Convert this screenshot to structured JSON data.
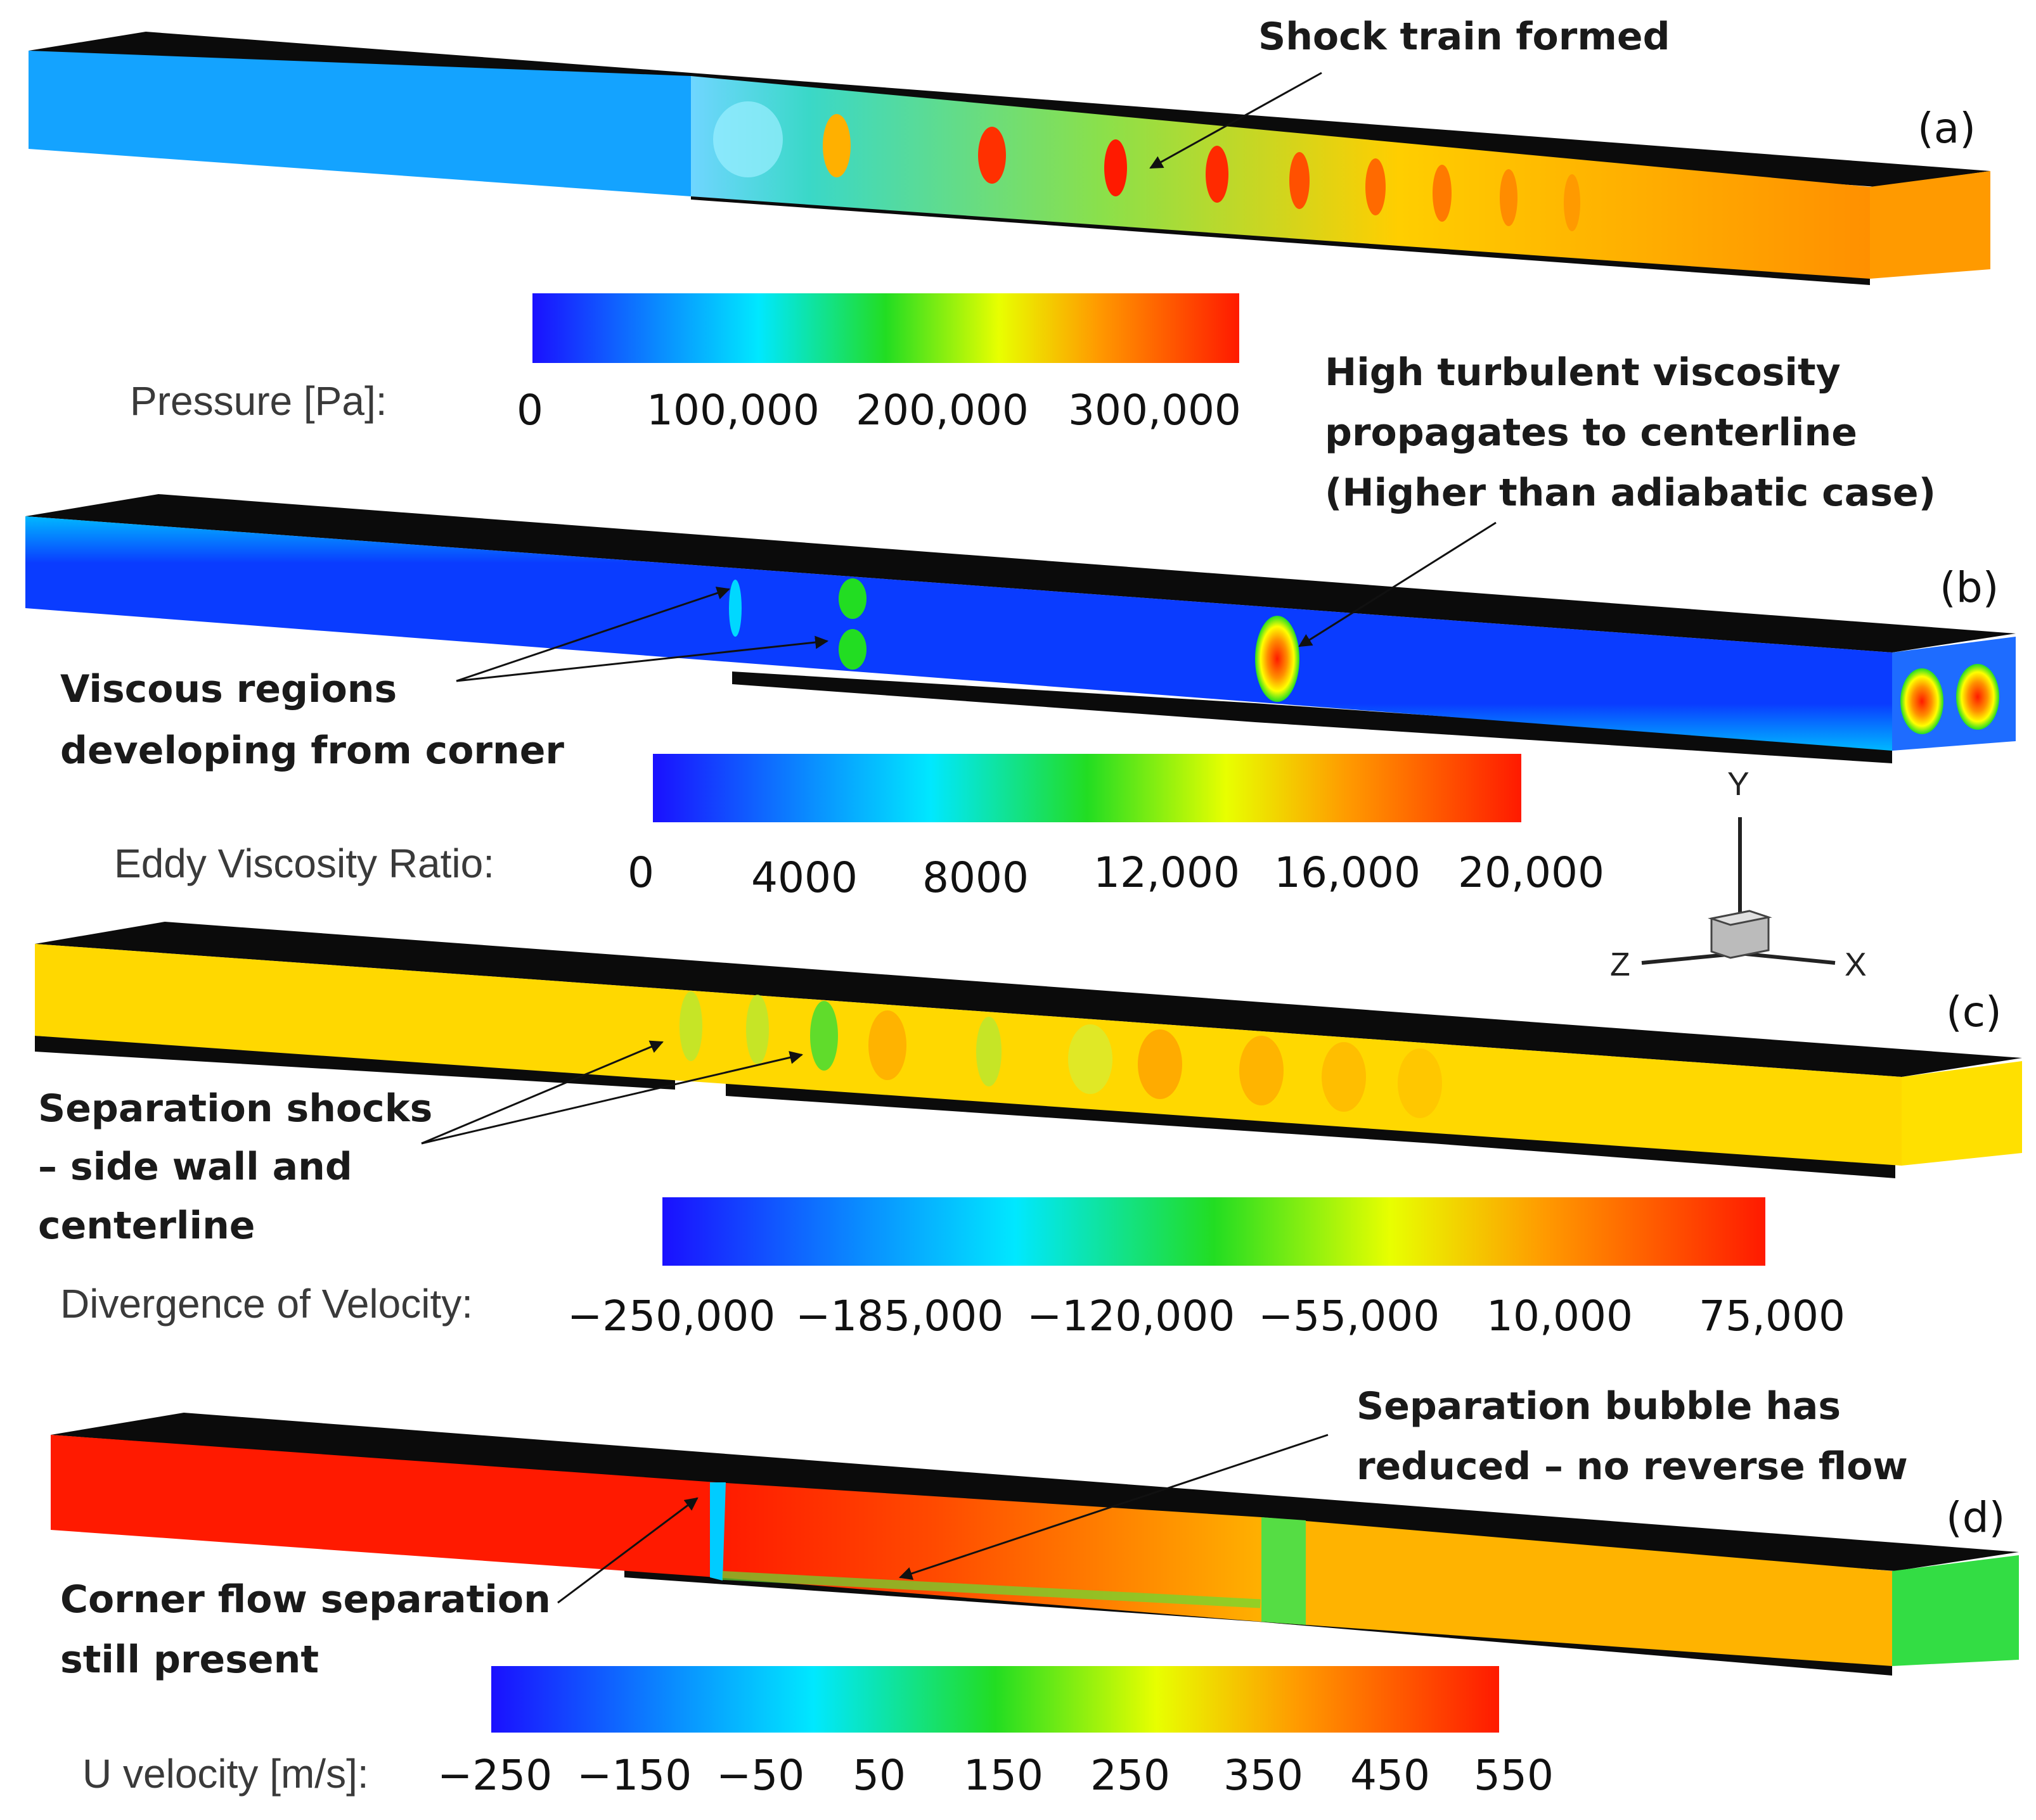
{
  "panels": [
    {
      "label": "(a)",
      "annotations": [
        "Shock train formed"
      ],
      "colorbar": {
        "title": "Pressure [Pa]:",
        "ticks": [
          "0",
          "100,000",
          "200,000",
          "300,000"
        ]
      }
    },
    {
      "label": "(b)",
      "annotations": [
        "High turbulent viscosity",
        "propagates to centerline",
        "(Higher than adiabatic case)",
        "Viscous regions",
        "developing from corner"
      ],
      "colorbar": {
        "title": "Eddy Viscosity Ratio:",
        "ticks": [
          "0",
          "4000",
          "8000",
          "12,000",
          "16,000",
          "20,000"
        ]
      }
    },
    {
      "label": "(c)",
      "annotations": [
        "Separation shocks",
        "– side wall and",
        "centerline"
      ],
      "colorbar": {
        "title": "Divergence of Velocity:",
        "ticks": [
          "−250,000",
          "−185,000",
          "−120,000",
          "−55,000",
          "10,000",
          "75,000"
        ]
      }
    },
    {
      "label": "(d)",
      "annotations": [
        "Separation bubble has",
        "reduced – no reverse flow",
        "Corner flow separation",
        "still present"
      ],
      "colorbar": {
        "title": "U velocity [m/s]:",
        "ticks": [
          "−250",
          "−150",
          "−50",
          "50",
          "150",
          "250",
          "350",
          "450",
          "550"
        ]
      }
    }
  ],
  "axes_triad": {
    "y": "Y",
    "z": "Z",
    "x": "X"
  },
  "colors": {
    "jet_blue": "#0a1aff",
    "jet_cyan": "#00e5ff",
    "jet_green": "#22dd22",
    "jet_yellow": "#ffff00",
    "jet_orange": "#ff9a00",
    "jet_red": "#ff1a00"
  }
}
